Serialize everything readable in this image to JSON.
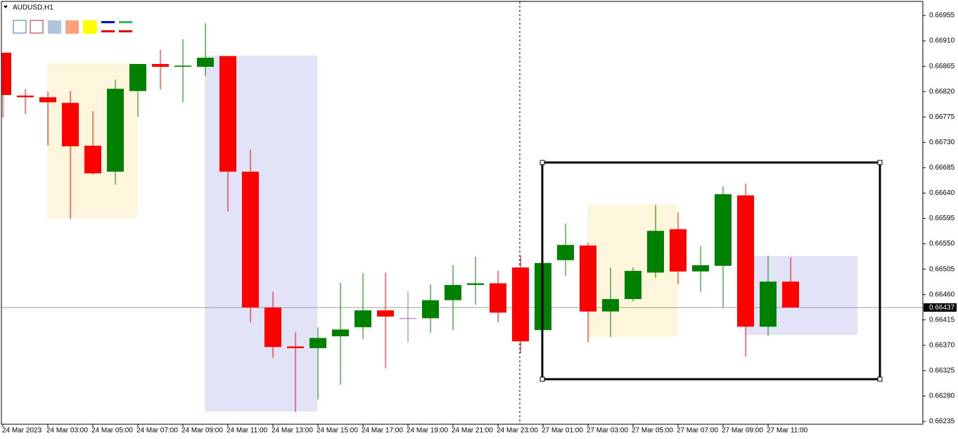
{
  "chart_data": {
    "type": "candlestick",
    "title": "AUDUSD,H1",
    "categories": [
      "24 Mar 2023",
      null,
      "24 Mar 03:00",
      null,
      "24 Mar 05:00",
      null,
      "24 Mar 07:00",
      null,
      "24 Mar 09:00",
      null,
      "24 Mar 11:00",
      null,
      "24 Mar 13:00",
      null,
      "24 Mar 15:00",
      null,
      "24 Mar 17:00",
      null,
      "24 Mar 19:00",
      null,
      "24 Mar 21:00",
      null,
      "24 Mar 23:00",
      null,
      "27 Mar 01:00",
      null,
      "27 Mar 03:00",
      null,
      "27 Mar 05:00",
      null,
      "27 Mar 07:00",
      null,
      "27 Mar 09:00",
      null,
      "27 Mar 11:00",
      null
    ],
    "open": [
      0.66889,
      0.66813,
      0.6681,
      0.668,
      0.66724,
      0.66678,
      0.66821,
      0.66869,
      0.66864,
      0.66864,
      0.66883,
      0.66678,
      0.66437,
      0.66368,
      0.66365,
      0.66386,
      0.66402,
      0.66432,
      0.66418,
      0.66418,
      0.6645,
      0.66477,
      0.6648,
      0.66508,
      0.66397,
      0.66521,
      0.66547,
      0.6643,
      0.66452,
      0.66499,
      0.66576,
      0.66501,
      0.66511,
      0.66636,
      0.66403,
      0.66483
    ],
    "high": [
      0.66889,
      0.66824,
      0.6682,
      0.66821,
      0.66785,
      0.66841,
      0.66869,
      0.66894,
      0.66913,
      0.66941,
      0.66883,
      0.66717,
      0.66465,
      0.66393,
      0.66402,
      0.66481,
      0.66498,
      0.66499,
      0.66466,
      0.66478,
      0.66512,
      0.66527,
      0.66502,
      0.66529,
      0.66521,
      0.66586,
      0.66552,
      0.66508,
      0.66508,
      0.66619,
      0.66606,
      0.66546,
      0.66652,
      0.66657,
      0.66529,
      0.66526
    ],
    "low": [
      0.66774,
      0.6678,
      0.66724,
      0.66594,
      0.66673,
      0.66655,
      0.66775,
      0.66824,
      0.66801,
      0.66848,
      0.66607,
      0.66411,
      0.66348,
      0.66252,
      0.66274,
      0.663,
      0.66381,
      0.66329,
      0.66375,
      0.66392,
      0.66397,
      0.66442,
      0.66411,
      0.66356,
      0.66393,
      0.66493,
      0.66375,
      0.66385,
      0.66448,
      0.6649,
      0.66478,
      0.66465,
      0.66437,
      0.6635,
      0.66387,
      0.66437
    ],
    "close": [
      0.66814,
      0.6681,
      0.66801,
      0.66723,
      0.66675,
      0.66825,
      0.66869,
      0.66864,
      0.66866,
      0.6688,
      0.66678,
      0.66437,
      0.66367,
      0.66365,
      0.66383,
      0.66398,
      0.66432,
      0.66421,
      0.66418,
      0.6645,
      0.66477,
      0.6648,
      0.66428,
      0.66377,
      0.66516,
      0.66548,
      0.6643,
      0.66452,
      0.66502,
      0.66573,
      0.66501,
      0.66512,
      0.66638,
      0.66403,
      0.66483,
      0.66437
    ],
    "up_color": "#008000",
    "down_color": "#ff0000",
    "doji_color": "#9966cc",
    "last_price": 0.66437,
    "ylim": [
      0.6623,
      0.6698
    ],
    "yticks": [
      0.66955,
      {
        "value": 0.6691,
        "label": "0.66910"
      },
      0.66865,
      {
        "value": 0.6682,
        "label": "0.66820"
      },
      0.66775,
      {
        "value": 0.6673,
        "label": "0.66730"
      },
      0.66685,
      {
        "value": 0.6664,
        "label": "0.66640"
      },
      0.66595,
      {
        "value": 0.6655,
        "label": "0.66550"
      },
      0.66505,
      {
        "value": 0.6646,
        "label": "0.66460"
      },
      0.66415,
      {
        "value": 0.6637,
        "label": "0.66370"
      },
      0.66325,
      {
        "value": 0.6628,
        "label": "0.66280"
      },
      0.66235
    ],
    "grid": false
  }
}
